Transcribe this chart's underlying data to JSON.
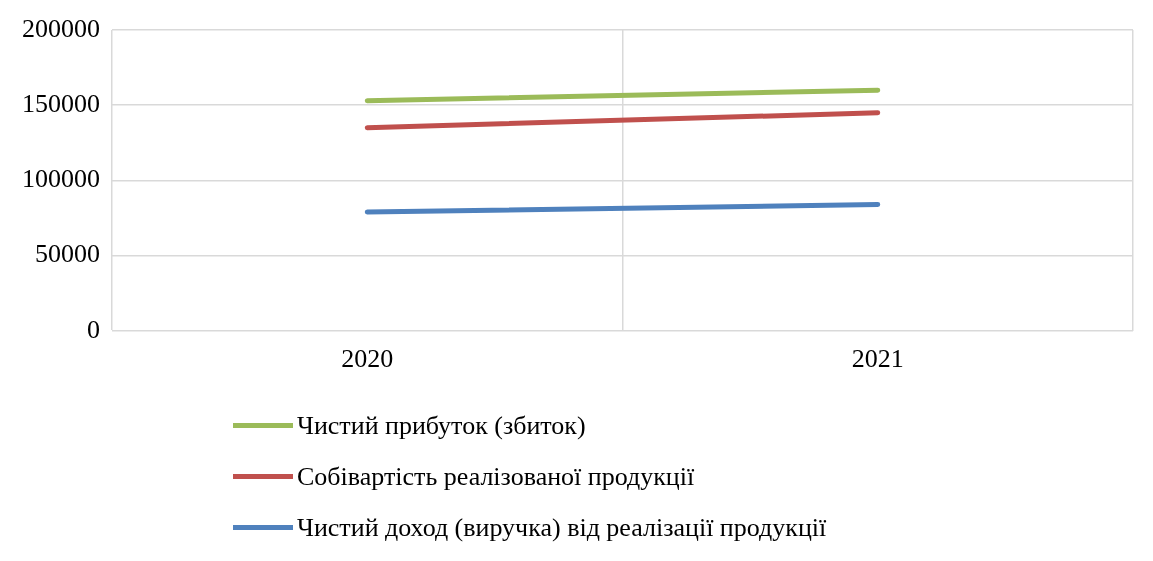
{
  "chart_data": {
    "type": "line",
    "categories": [
      "2020",
      "2021"
    ],
    "series": [
      {
        "name": "Чистий прибуток (збиток)",
        "color": "#9bbb59",
        "values": [
          153000,
          160000
        ]
      },
      {
        "name": "Собівартість реалізованої продукції",
        "color": "#c0504d",
        "values": [
          135000,
          145000
        ]
      },
      {
        "name": "Чистий доход (виручка) від реалізації продукції",
        "color": "#4f81bd",
        "values": [
          79000,
          84000
        ]
      }
    ],
    "ylim": [
      0,
      200000
    ],
    "yticks": [
      0,
      50000,
      100000,
      150000,
      200000
    ],
    "grid": true,
    "legend": "bottom",
    "marker": "none",
    "line_style": "solid"
  }
}
